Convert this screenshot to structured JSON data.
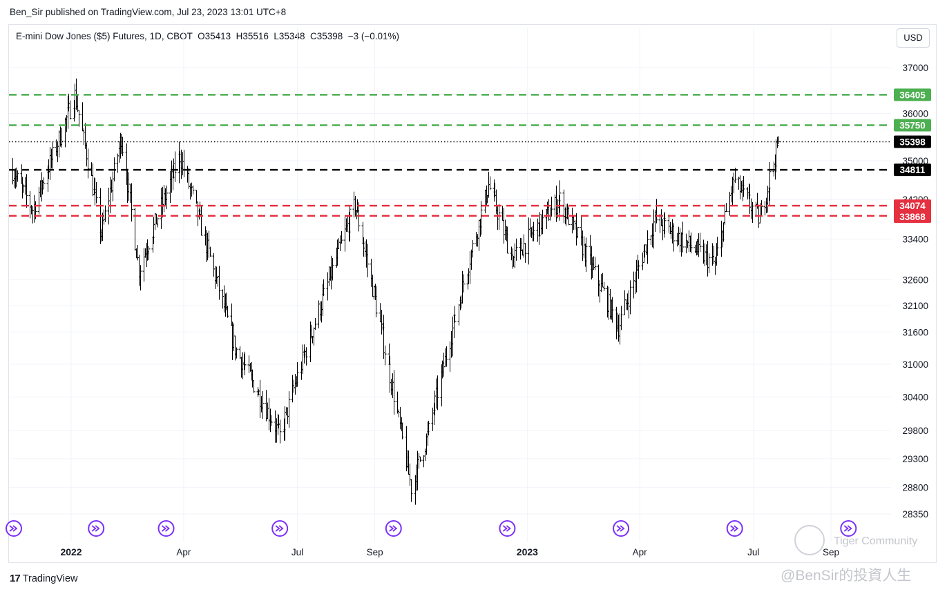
{
  "header": {
    "publisher": "Ben_Sir published on TradingView.com, Jul 23, 2023 13:01 UTC+8"
  },
  "legend": {
    "text": "E-mini Dow Jones ($5) Futures, 1D, CBOT  O35413  H35516  L35348  C35398  −3 (−0.01%)"
  },
  "currency_button": "USD",
  "footer": {
    "brand": "TradingView",
    "brand_mark": "17"
  },
  "watermark": {
    "line1": "Tiger Community",
    "line2": "@BenSir的投資人生"
  },
  "colors": {
    "green": "#4caf50",
    "red": "#e53040",
    "black": "#000000",
    "accent_icon": "#7b2ff7",
    "grid": "#f0f3fa"
  },
  "chart_data": {
    "type": "bar",
    "title": "E-mini Dow Jones ($5) Futures, 1D, CBOT",
    "xlabel": "",
    "ylabel": "",
    "ylim": [
      28100,
      37500
    ],
    "y_ticks": [
      37000,
      36000,
      35000,
      34200,
      33400,
      32600,
      32100,
      31600,
      31000,
      30400,
      29800,
      29300,
      28800,
      28350
    ],
    "x_ticks": [
      "2022",
      "Apr",
      "Jul",
      "Sep",
      "2023",
      "Apr",
      "Jul",
      "Sep"
    ],
    "x_ticks_bold": [
      "2022",
      "2023"
    ],
    "grid": true,
    "date_range": [
      "2021-11-15",
      "2023-07-21"
    ],
    "ohlc_summary": {
      "open": 35413,
      "high": 35516,
      "low": 35348,
      "close": 35398,
      "change": -3,
      "change_pct": "-0.01%"
    },
    "price_path": [
      [
        "2021-11-15",
        34800
      ],
      [
        "2021-12-01",
        34000
      ],
      [
        "2021-12-20",
        35300
      ],
      [
        "2022-01-04",
        36400
      ],
      [
        "2022-01-25",
        33500
      ],
      [
        "2022-02-10",
        35500
      ],
      [
        "2022-02-24",
        32800
      ],
      [
        "2022-03-29",
        35100
      ],
      [
        "2022-05-12",
        31300
      ],
      [
        "2022-06-17",
        29700
      ],
      [
        "2022-06-30",
        30700
      ],
      [
        "2022-08-16",
        34100
      ],
      [
        "2022-09-30",
        28800
      ],
      [
        "2022-10-13",
        29700
      ],
      [
        "2022-12-01",
        34500
      ],
      [
        "2022-12-20",
        33000
      ],
      [
        "2023-01-27",
        34200
      ],
      [
        "2023-03-15",
        31700
      ],
      [
        "2023-04-13",
        33800
      ],
      [
        "2023-05-31",
        32900
      ],
      [
        "2023-06-15",
        34600
      ],
      [
        "2023-07-06",
        33800
      ],
      [
        "2023-07-21",
        35398
      ]
    ],
    "horizontal_levels": [
      {
        "value": 36405,
        "color": "green",
        "style": "dashed"
      },
      {
        "value": 35750,
        "color": "green",
        "style": "dashed"
      },
      {
        "value": 35398,
        "color": "black",
        "style": "dotted"
      },
      {
        "value": 34811,
        "color": "black",
        "style": "dashed"
      },
      {
        "value": 34074,
        "color": "red",
        "style": "dashed"
      },
      {
        "value": 33868,
        "color": "red",
        "style": "dashed"
      }
    ],
    "price_labels": [
      {
        "text": "36405",
        "bg": "#4caf50"
      },
      {
        "text": "35750",
        "bg": "#4caf50"
      },
      {
        "text": "35398",
        "bg": "#000000"
      },
      {
        "text": "34811",
        "bg": "#000000"
      },
      {
        "text": "34074",
        "bg": "#e53040"
      },
      {
        "text": "33868",
        "bg": "#e53040"
      }
    ],
    "event_icon_dates": [
      "2021-11-15",
      "2022-01-21",
      "2022-03-18",
      "2022-06-17",
      "2022-09-16",
      "2022-12-16",
      "2023-03-17",
      "2023-06-16",
      "2023-09-15"
    ]
  }
}
